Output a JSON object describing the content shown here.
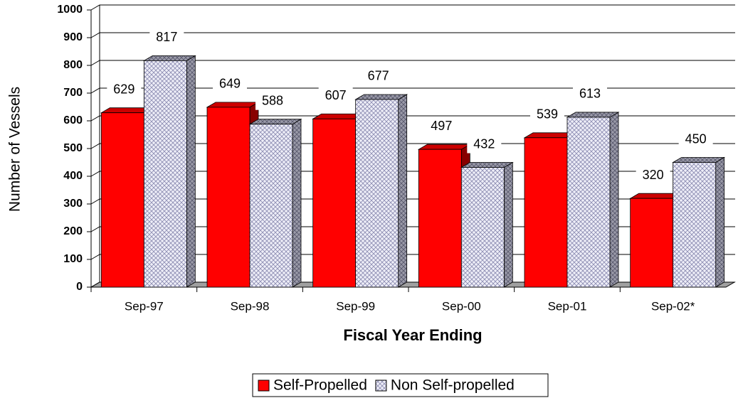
{
  "chart_data": {
    "type": "bar3d",
    "x_label": "Fiscal Year Ending",
    "y_label": "Number of Vessels",
    "categories": [
      "Sep-97",
      "Sep-98",
      "Sep-99",
      "Sep-00",
      "Sep-01",
      "Sep-02*"
    ],
    "series": [
      {
        "name": "Self-Propelled",
        "color": "#ff0000",
        "values": [
          629,
          649,
          607,
          497,
          539,
          320
        ]
      },
      {
        "name": "Non Self-propelled",
        "color": "#d8d8ec",
        "values": [
          817,
          588,
          677,
          432,
          613,
          450
        ]
      }
    ],
    "ylim": [
      0,
      1000
    ],
    "yticks": [
      0,
      100,
      200,
      300,
      400,
      500,
      600,
      700,
      800,
      900,
      1000
    ],
    "grid": true,
    "legend": "bottom"
  }
}
